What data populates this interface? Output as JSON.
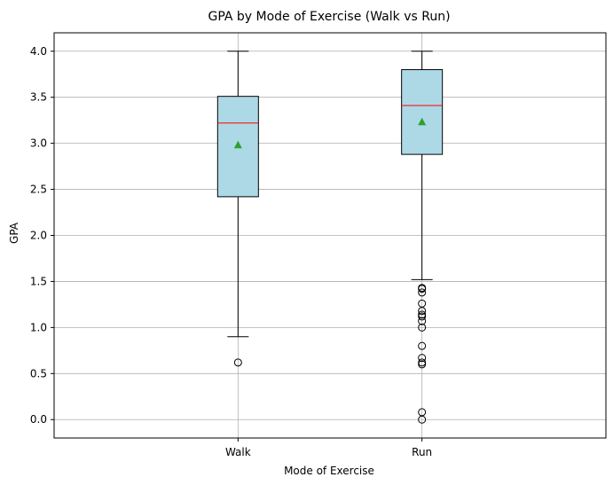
{
  "chart_data": {
    "type": "box",
    "title": "GPA by Mode of Exercise (Walk vs Run)",
    "xlabel": "Mode of Exercise",
    "ylabel": "GPA",
    "ylim": [
      -0.2,
      4.2
    ],
    "yticks": [
      "0.0",
      "0.5",
      "1.0",
      "1.5",
      "2.0",
      "2.5",
      "3.0",
      "3.5",
      "4.0"
    ],
    "grid": true,
    "categories": [
      "Walk",
      "Run"
    ],
    "boxes": [
      {
        "label": "Walk",
        "whisker_low": 0.9,
        "q1": 2.42,
        "median": 3.22,
        "q3": 3.51,
        "whisker_high": 4.0,
        "mean": 2.98,
        "outliers": [
          0.62
        ]
      },
      {
        "label": "Run",
        "whisker_low": 1.52,
        "q1": 2.88,
        "median": 3.41,
        "q3": 3.8,
        "whisker_high": 4.0,
        "mean": 3.23,
        "outliers": [
          1.43,
          1.42,
          1.38,
          1.26,
          1.18,
          1.14,
          1.12,
          1.07,
          1.0,
          0.8,
          0.67,
          0.62,
          0.6,
          0.08,
          0.0
        ]
      }
    ],
    "colors": {
      "box_fill": "#add8e6",
      "box_edge": "#000000",
      "median": "#ff0000",
      "mean": "#2ca02c",
      "grid": "#b0b0b0"
    }
  }
}
